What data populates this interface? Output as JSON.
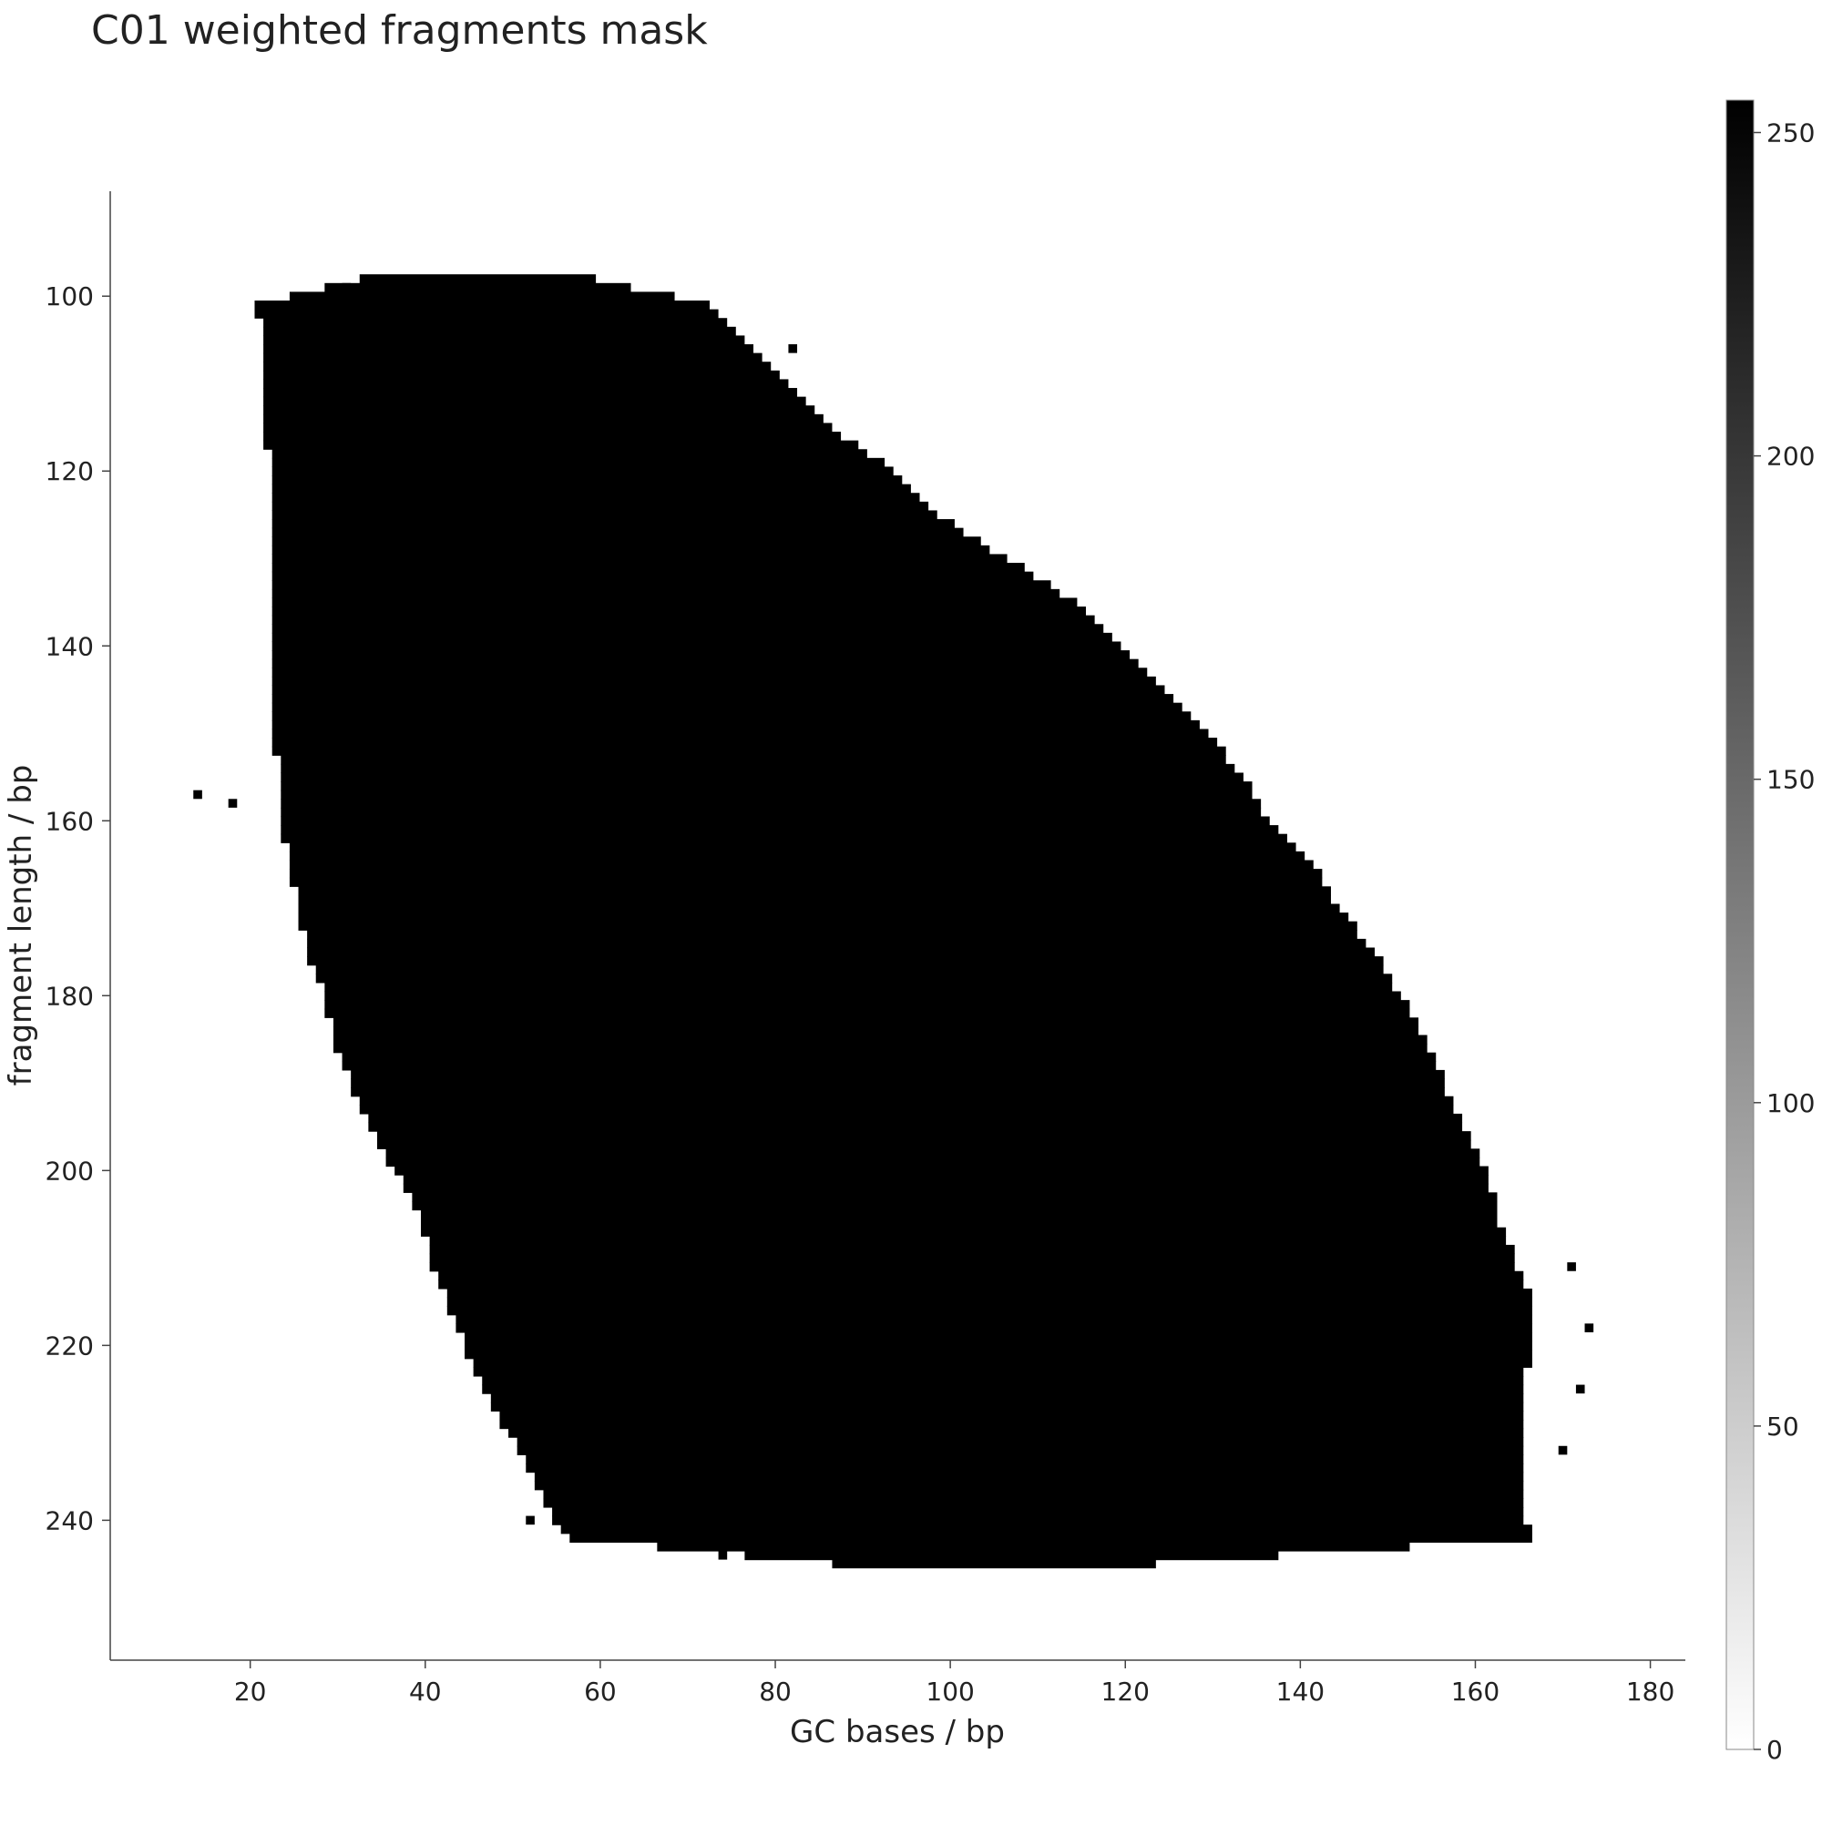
{
  "chart_data": {
    "type": "heatmap",
    "title": "C01 weighted fragments mask",
    "xlabel": "GC bases / bp",
    "ylabel": "fragment length / bp",
    "xlim": [
      4,
      184
    ],
    "ylim": [
      256,
      88
    ],
    "y_inverted": true,
    "x_ticks": [
      20,
      40,
      60,
      80,
      100,
      120,
      140,
      160,
      180
    ],
    "y_ticks": [
      100,
      120,
      140,
      160,
      180,
      200,
      220,
      240
    ],
    "grid": false,
    "colormap": {
      "name": "grayscale",
      "low_color": "#ffffff",
      "high_color": "#000000",
      "range": [
        0,
        255
      ],
      "ticks": [
        0,
        50,
        100,
        150,
        200,
        250
      ]
    },
    "mask_value": 255,
    "mask_region": {
      "description_rows": "for each fragment length, GC base range [x_start, x_end] with value 255",
      "rows": [
        {
          "y": 98,
          "x_start": 33,
          "x_end": 59
        },
        {
          "y": 101,
          "x_start": 21,
          "x_end": 72
        },
        {
          "y": 105,
          "x_start": 22,
          "x_end": 76
        },
        {
          "y": 110,
          "x_start": 22,
          "x_end": 81
        },
        {
          "y": 115,
          "x_start": 22,
          "x_end": 86
        },
        {
          "y": 120,
          "x_start": 23,
          "x_end": 93
        },
        {
          "y": 125,
          "x_start": 23,
          "x_end": 98
        },
        {
          "y": 130,
          "x_start": 23,
          "x_end": 106
        },
        {
          "y": 135,
          "x_start": 23,
          "x_end": 114
        },
        {
          "y": 140,
          "x_start": 23,
          "x_end": 119
        },
        {
          "y": 145,
          "x_start": 23,
          "x_end": 124
        },
        {
          "y": 150,
          "x_start": 23,
          "x_end": 129
        },
        {
          "y": 155,
          "x_start": 24,
          "x_end": 133
        },
        {
          "y": 160,
          "x_start": 24,
          "x_end": 136
        },
        {
          "y": 165,
          "x_start": 25,
          "x_end": 141
        },
        {
          "y": 170,
          "x_start": 26,
          "x_end": 144
        },
        {
          "y": 175,
          "x_start": 27,
          "x_end": 148
        },
        {
          "y": 180,
          "x_start": 29,
          "x_end": 151
        },
        {
          "y": 185,
          "x_start": 30,
          "x_end": 154
        },
        {
          "y": 190,
          "x_start": 32,
          "x_end": 156
        },
        {
          "y": 195,
          "x_start": 34,
          "x_end": 158
        },
        {
          "y": 200,
          "x_start": 37,
          "x_end": 161
        },
        {
          "y": 205,
          "x_start": 40,
          "x_end": 162
        },
        {
          "y": 210,
          "x_start": 41,
          "x_end": 164
        },
        {
          "y": 215,
          "x_start": 43,
          "x_end": 166
        },
        {
          "y": 220,
          "x_start": 45,
          "x_end": 166
        },
        {
          "y": 225,
          "x_start": 47,
          "x_end": 165
        },
        {
          "y": 230,
          "x_start": 50,
          "x_end": 165
        },
        {
          "y": 235,
          "x_start": 53,
          "x_end": 165
        },
        {
          "y": 240,
          "x_start": 55,
          "x_end": 165
        },
        {
          "y": 242,
          "x_start": 57,
          "x_end": 166
        },
        {
          "y": 245,
          "x_start": 87,
          "x_end": 123
        }
      ],
      "outliers": [
        {
          "x": 14,
          "y": 157
        },
        {
          "x": 18,
          "y": 158
        },
        {
          "x": 31,
          "y": 99
        },
        {
          "x": 82,
          "y": 106
        },
        {
          "x": 171,
          "y": 211
        },
        {
          "x": 173,
          "y": 218
        },
        {
          "x": 172,
          "y": 225
        },
        {
          "x": 170,
          "y": 232
        },
        {
          "x": 52,
          "y": 240
        },
        {
          "x": 136,
          "y": 244
        },
        {
          "x": 74,
          "y": 244
        }
      ]
    }
  }
}
